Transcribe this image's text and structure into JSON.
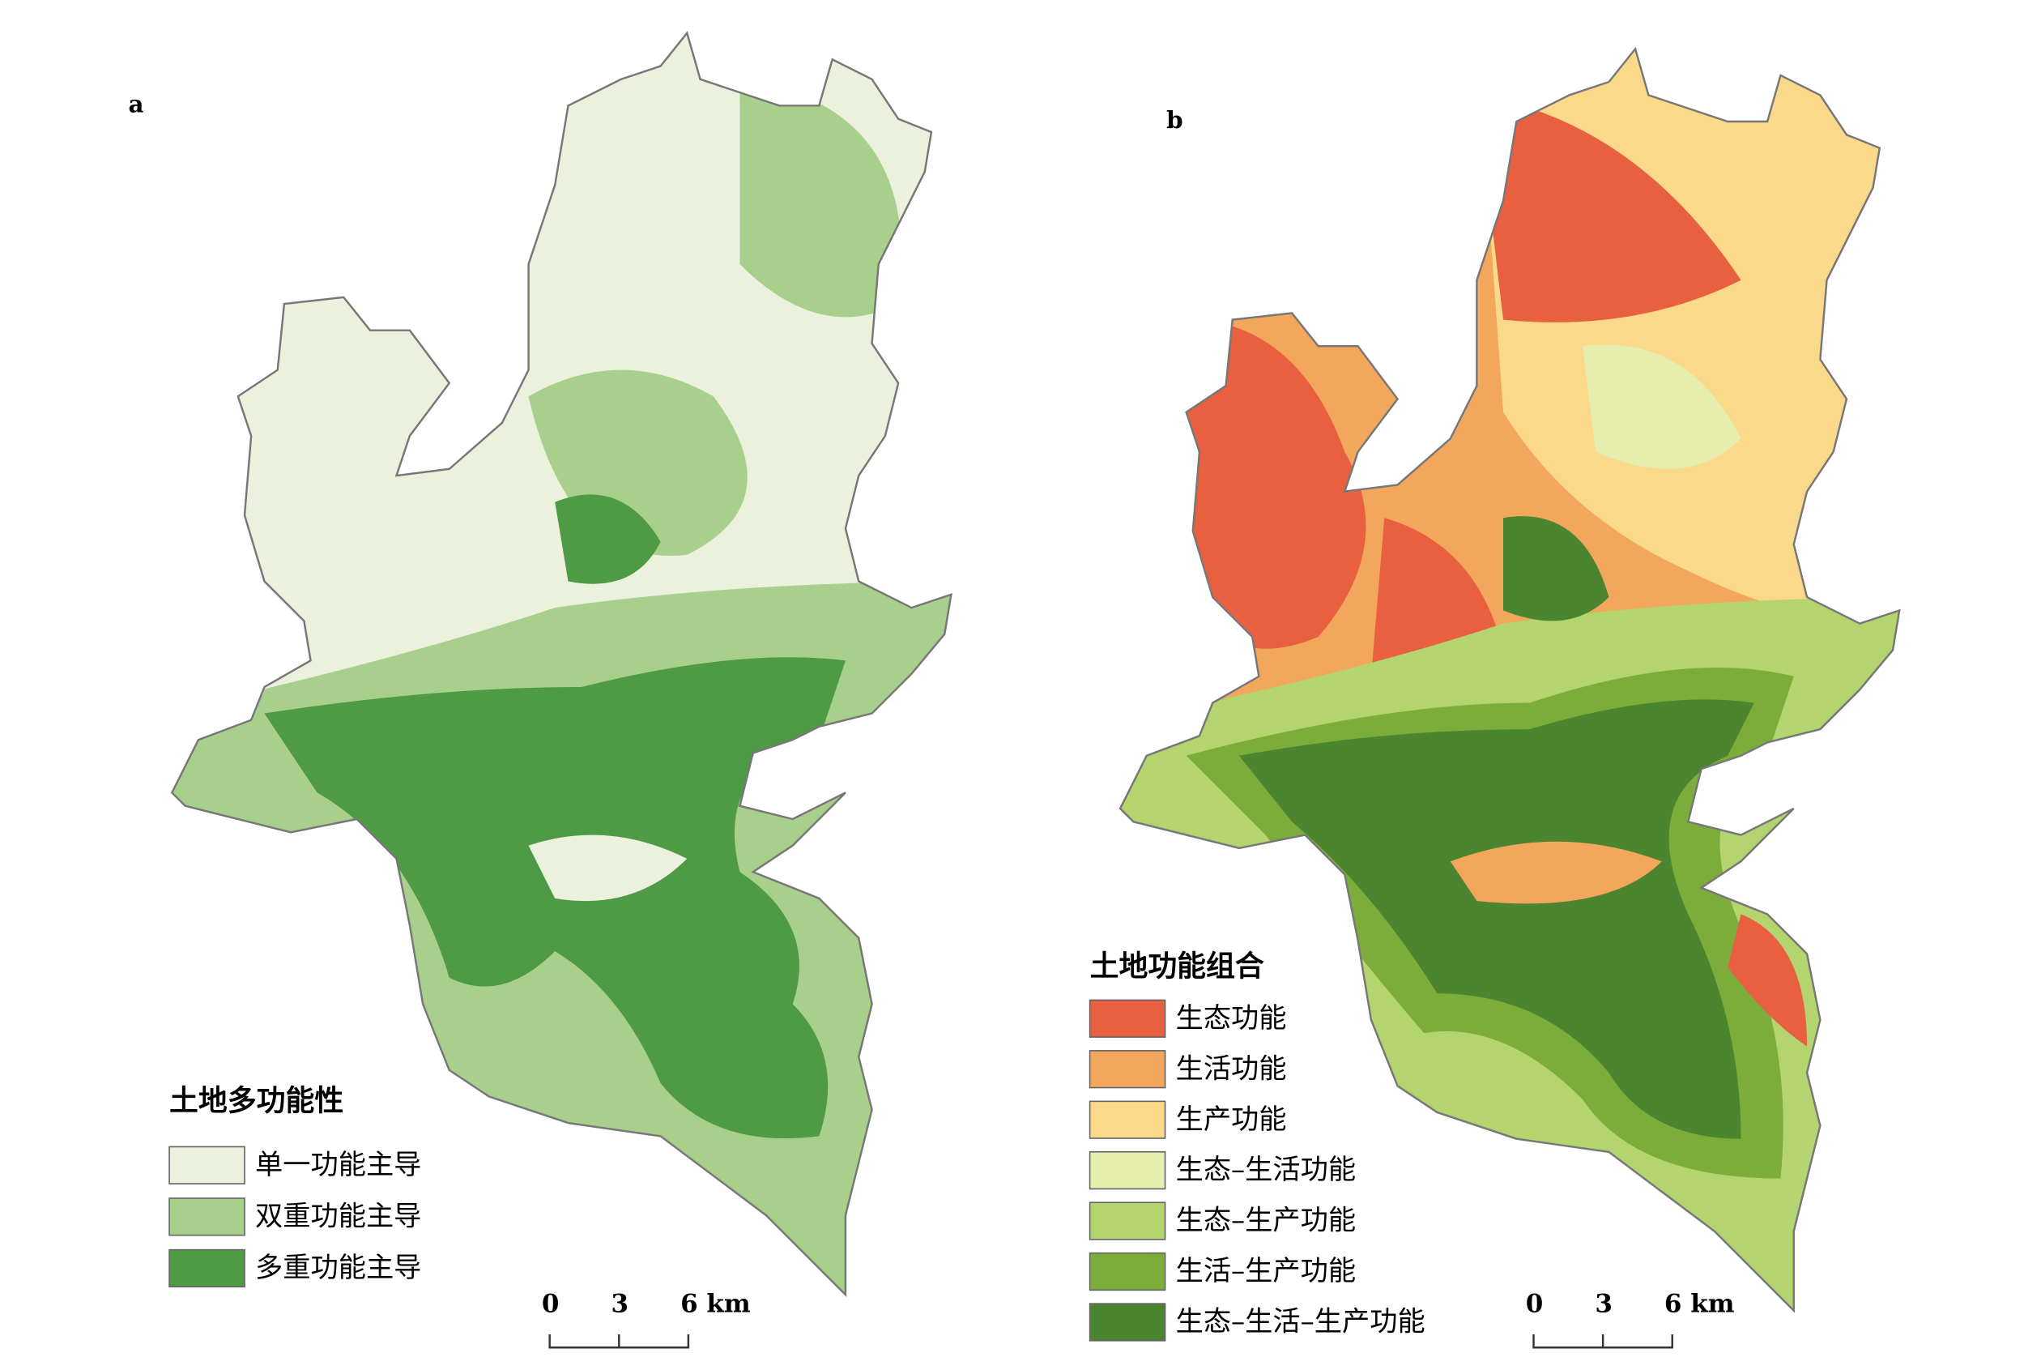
{
  "panels": [
    {
      "label": "a",
      "legend_title": "土地多功能性",
      "legend": [
        {
          "name": "单一功能主导",
          "color": "#ebf1dd"
        },
        {
          "name": "双重功能主导",
          "color": "#a8d08c"
        },
        {
          "name": "多重功能主导",
          "color": "#4f9a45"
        }
      ],
      "scale": [
        "0",
        "3",
        "6 km"
      ]
    },
    {
      "label": "b",
      "legend_title": "土地功能组合",
      "legend": [
        {
          "name": "生态功能",
          "color": "#e8603f"
        },
        {
          "name": "生活功能",
          "color": "#f2a75c"
        },
        {
          "name": "生产功能",
          "color": "#fbd98a"
        },
        {
          "name": "生态–生活功能",
          "color": "#e6eeae"
        },
        {
          "name": "生态–生产功能",
          "color": "#b3d46e"
        },
        {
          "name": "生活–生产功能",
          "color": "#7cad3a"
        },
        {
          "name": "生态–生活–生产功能",
          "color": "#4b8530"
        }
      ],
      "scale": [
        "0",
        "3",
        "6 km"
      ]
    }
  ]
}
